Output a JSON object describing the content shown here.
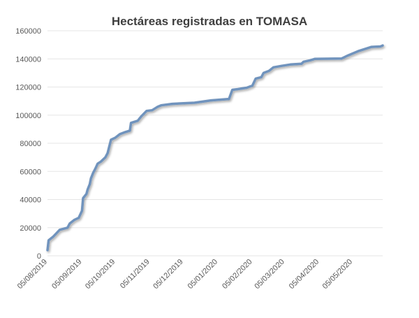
{
  "chart_data": {
    "type": "line",
    "title": "Hectáreas registradas en TOMASA",
    "xlabel": "",
    "ylabel": "",
    "ylim": [
      0,
      160000
    ],
    "y_ticks": [
      "0",
      "20000",
      "40000",
      "60000",
      "80000",
      "100000",
      "120000",
      "140000",
      "160000"
    ],
    "x_tick_labels": [
      "05/08/2019",
      "05/09/2019",
      "05/10/2019",
      "05/11/2019",
      "05/12/2019",
      "05/01/2020",
      "05/02/2020",
      "05/03/2020",
      "05/04/2020",
      "05/05/2020"
    ],
    "x_tick_dates": [
      "2019-08-05",
      "2019-09-05",
      "2019-10-05",
      "2019-11-05",
      "2019-12-05",
      "2020-01-05",
      "2020-02-05",
      "2020-03-05",
      "2020-04-05",
      "2020-05-05"
    ],
    "x_range": [
      "2019-08-05",
      "2020-06-01"
    ],
    "grid": "horizontal",
    "legend": "none",
    "line_color": "#6f93bd",
    "series": [
      {
        "points": [
          [
            "2019-08-05",
            4000
          ],
          [
            "2019-08-06",
            11000
          ],
          [
            "2019-08-10",
            13500
          ],
          [
            "2019-08-16",
            18500
          ],
          [
            "2019-08-23",
            20000
          ],
          [
            "2019-08-25",
            23000
          ],
          [
            "2019-08-29",
            25500
          ],
          [
            "2019-09-02",
            27000
          ],
          [
            "2019-09-05",
            32000
          ],
          [
            "2019-09-06",
            41000
          ],
          [
            "2019-09-09",
            44000
          ],
          [
            "2019-09-10",
            47000
          ],
          [
            "2019-09-12",
            51000
          ],
          [
            "2019-09-13",
            55000
          ],
          [
            "2019-09-15",
            59000
          ],
          [
            "2019-09-17",
            62000
          ],
          [
            "2019-09-19",
            65500
          ],
          [
            "2019-09-22",
            67000
          ],
          [
            "2019-09-26",
            70000
          ],
          [
            "2019-09-28",
            73000
          ],
          [
            "2019-10-01",
            82500
          ],
          [
            "2019-10-05",
            84000
          ],
          [
            "2019-10-09",
            86500
          ],
          [
            "2019-10-14",
            88000
          ],
          [
            "2019-10-18",
            89000
          ],
          [
            "2019-10-19",
            94500
          ],
          [
            "2019-10-25",
            96000
          ],
          [
            "2019-10-28",
            99000
          ],
          [
            "2019-11-02",
            103000
          ],
          [
            "2019-11-07",
            103500
          ],
          [
            "2019-11-12",
            106000
          ],
          [
            "2019-11-15",
            107000
          ],
          [
            "2019-11-25",
            108000
          ],
          [
            "2019-12-15",
            108800
          ],
          [
            "2019-12-30",
            110500
          ],
          [
            "2020-01-15",
            111500
          ],
          [
            "2020-01-18",
            118000
          ],
          [
            "2020-01-23",
            118500
          ],
          [
            "2020-01-31",
            119500
          ],
          [
            "2020-02-05",
            121000
          ],
          [
            "2020-02-08",
            126000
          ],
          [
            "2020-02-13",
            127000
          ],
          [
            "2020-02-15",
            130000
          ],
          [
            "2020-02-20",
            131500
          ],
          [
            "2020-02-24",
            134000
          ],
          [
            "2020-03-02",
            135000
          ],
          [
            "2020-03-10",
            136000
          ],
          [
            "2020-03-20",
            136500
          ],
          [
            "2020-03-22",
            138000
          ],
          [
            "2020-03-28",
            139000
          ],
          [
            "2020-04-01",
            140000
          ],
          [
            "2020-04-25",
            140200
          ],
          [
            "2020-05-01",
            142500
          ],
          [
            "2020-05-10",
            145500
          ],
          [
            "2020-05-22",
            148500
          ],
          [
            "2020-05-30",
            148800
          ],
          [
            "2020-06-01",
            149500
          ]
        ]
      }
    ]
  }
}
